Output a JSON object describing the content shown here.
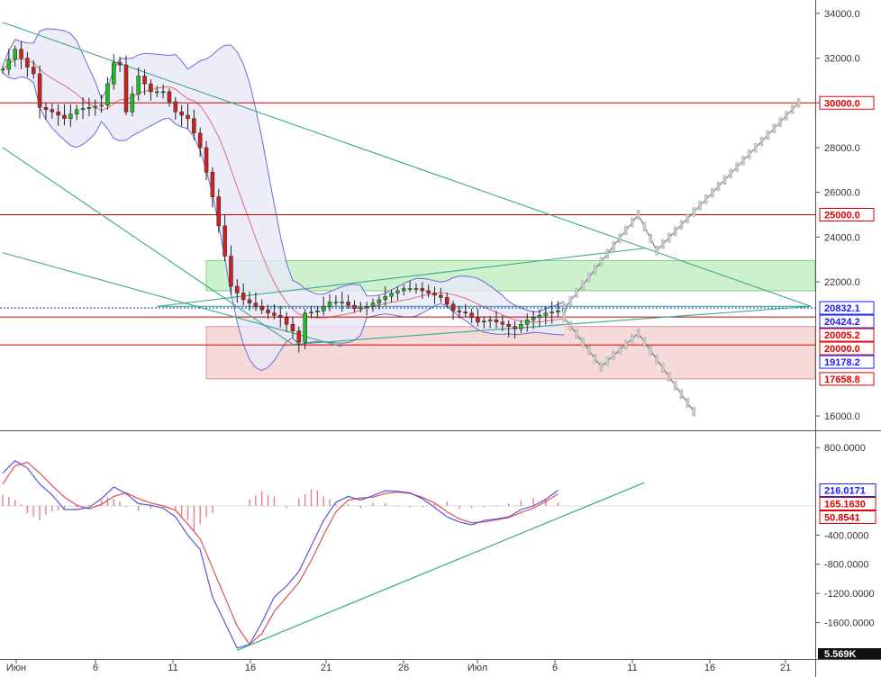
{
  "chart_data": [
    {
      "type": "candlestick",
      "ylim": [
        15400,
        34600
      ],
      "x_axis_labels": [
        "Июн",
        "6",
        "11",
        "16",
        "21",
        "26",
        "Июл",
        "6",
        "11",
        "16",
        "21"
      ],
      "y_tick_labels": [
        "34000.0",
        "32000.0",
        "30000.0",
        "28000.0",
        "26000.0",
        "24000.0",
        "22000.0",
        "16000.0"
      ],
      "price_tags": [
        {
          "label": "30000.0",
          "value": 30000,
          "color": "#e00000"
        },
        {
          "label": "25000.0",
          "value": 25000,
          "color": "#e00000"
        },
        {
          "label": "20832.1",
          "value": 20832.1,
          "color": "#1a1aff"
        },
        {
          "label": "20424.2",
          "value": 20424.2,
          "color": "#1a1aff"
        },
        {
          "label": "20005.2",
          "value": 20005.2,
          "color": "#e00000"
        },
        {
          "label": "20000.0",
          "value": 20000,
          "color": "#e00000"
        },
        {
          "label": "19178.2",
          "value": 19178.2,
          "color": "#1a1aff"
        },
        {
          "label": "17658.8",
          "value": 17658.8,
          "color": "#e00000"
        }
      ],
      "horizontal_levels": [
        30000,
        25000,
        20424.2,
        19178.2
      ],
      "current_price_level": 20832.1,
      "zones": [
        {
          "from": 21600,
          "to": 22950,
          "color": "#c8f0c8"
        },
        {
          "from": 17658.8,
          "to": 20000,
          "color": "#f6d6d6"
        }
      ],
      "colors": {
        "up": "#22bb22",
        "down": "#cc2222",
        "bands": "#6a6ad8",
        "bands_fill": "#e8e8f8",
        "ma": "#e07070",
        "trendlines": "#3aa88a",
        "levels": "#cc0000",
        "projection": "#888888"
      },
      "price_path": [
        [
          0,
          31500
        ],
        [
          2,
          32400
        ],
        [
          4,
          31600
        ],
        [
          5,
          31300
        ],
        [
          6,
          29800
        ],
        [
          8,
          29600
        ],
        [
          10,
          29300
        ],
        [
          12,
          29700
        ],
        [
          14,
          29800
        ],
        [
          16,
          29900
        ],
        [
          18,
          31800
        ],
        [
          19,
          31700
        ],
        [
          20,
          29600
        ],
        [
          22,
          31200
        ],
        [
          24,
          30500
        ],
        [
          26,
          30500
        ],
        [
          28,
          29600
        ],
        [
          30,
          29300
        ],
        [
          32,
          28000
        ],
        [
          34,
          25800
        ],
        [
          35,
          24500
        ],
        [
          37,
          21800
        ],
        [
          39,
          21200
        ],
        [
          41,
          20900
        ],
        [
          43,
          20600
        ],
        [
          45,
          20400
        ],
        [
          47,
          19800
        ],
        [
          48,
          19300
        ],
        [
          49,
          20600
        ],
        [
          51,
          20700
        ],
        [
          53,
          21100
        ],
        [
          55,
          21100
        ],
        [
          57,
          20800
        ],
        [
          59,
          20900
        ],
        [
          61,
          21200
        ],
        [
          63,
          21500
        ],
        [
          65,
          21700
        ],
        [
          67,
          21700
        ],
        [
          69,
          21500
        ],
        [
          71,
          21300
        ],
        [
          73,
          20700
        ],
        [
          75,
          20600
        ],
        [
          77,
          20200
        ],
        [
          79,
          20300
        ],
        [
          81,
          20100
        ],
        [
          83,
          19900
        ],
        [
          85,
          20300
        ],
        [
          86,
          20400
        ],
        [
          88,
          20600
        ],
        [
          90,
          20700
        ],
        [
          91,
          20832
        ]
      ],
      "projection_up": [
        [
          91,
          20800
        ],
        [
          103,
          25000
        ],
        [
          106,
          23400
        ],
        [
          129,
          30000
        ]
      ],
      "projection_down": [
        [
          91,
          20400
        ],
        [
          97,
          18200
        ],
        [
          103,
          19700
        ],
        [
          112,
          16200
        ]
      ]
    },
    {
      "type": "macd",
      "ylim": [
        -2100,
        1000
      ],
      "y_tick_labels": [
        "800.0000",
        "-400.0000",
        "-800.0000",
        "-1200.0000",
        "-1600.0000"
      ],
      "value_tags": [
        {
          "label": "216.0171",
          "value": 216.0171,
          "color": "#1a1aff"
        },
        {
          "label": "165.1630",
          "value": 165.163,
          "color": "#e00000"
        },
        {
          "label": "50.8541",
          "value": 50.8541,
          "color": "#e00000"
        }
      ],
      "bottom_tag": "5.569K",
      "macd": [
        [
          0,
          450
        ],
        [
          2,
          620
        ],
        [
          4,
          520
        ],
        [
          6,
          300
        ],
        [
          8,
          150
        ],
        [
          10,
          -50
        ],
        [
          12,
          -50
        ],
        [
          14,
          -20
        ],
        [
          16,
          100
        ],
        [
          18,
          260
        ],
        [
          20,
          170
        ],
        [
          22,
          30
        ],
        [
          24,
          10
        ],
        [
          26,
          -30
        ],
        [
          28,
          -150
        ],
        [
          30,
          -400
        ],
        [
          32,
          -600
        ],
        [
          34,
          -1250
        ],
        [
          36,
          -1600
        ],
        [
          38,
          -1950
        ],
        [
          40,
          -1900
        ],
        [
          42,
          -1600
        ],
        [
          44,
          -1250
        ],
        [
          46,
          -1100
        ],
        [
          48,
          -900
        ],
        [
          50,
          -550
        ],
        [
          52,
          -200
        ],
        [
          54,
          50
        ],
        [
          56,
          130
        ],
        [
          58,
          80
        ],
        [
          60,
          140
        ],
        [
          62,
          210
        ],
        [
          64,
          200
        ],
        [
          66,
          180
        ],
        [
          68,
          100
        ],
        [
          70,
          -20
        ],
        [
          72,
          -150
        ],
        [
          74,
          -220
        ],
        [
          76,
          -260
        ],
        [
          78,
          -200
        ],
        [
          80,
          -180
        ],
        [
          82,
          -150
        ],
        [
          84,
          -50
        ],
        [
          86,
          0
        ],
        [
          88,
          90
        ],
        [
          90,
          216
        ]
      ],
      "signal": [
        [
          0,
          300
        ],
        [
          2,
          550
        ],
        [
          4,
          600
        ],
        [
          6,
          450
        ],
        [
          8,
          280
        ],
        [
          10,
          120
        ],
        [
          12,
          10
        ],
        [
          14,
          -40
        ],
        [
          16,
          20
        ],
        [
          18,
          130
        ],
        [
          20,
          180
        ],
        [
          22,
          100
        ],
        [
          24,
          40
        ],
        [
          26,
          0
        ],
        [
          28,
          -60
        ],
        [
          30,
          -250
        ],
        [
          32,
          -450
        ],
        [
          34,
          -850
        ],
        [
          36,
          -1250
        ],
        [
          38,
          -1650
        ],
        [
          40,
          -1900
        ],
        [
          42,
          -1750
        ],
        [
          44,
          -1450
        ],
        [
          46,
          -1250
        ],
        [
          48,
          -1050
        ],
        [
          50,
          -750
        ],
        [
          52,
          -400
        ],
        [
          54,
          -80
        ],
        [
          56,
          80
        ],
        [
          58,
          110
        ],
        [
          60,
          120
        ],
        [
          62,
          170
        ],
        [
          64,
          190
        ],
        [
          66,
          170
        ],
        [
          68,
          120
        ],
        [
          70,
          40
        ],
        [
          72,
          -80
        ],
        [
          74,
          -180
        ],
        [
          76,
          -230
        ],
        [
          78,
          -220
        ],
        [
          80,
          -190
        ],
        [
          82,
          -160
        ],
        [
          84,
          -90
        ],
        [
          86,
          -30
        ],
        [
          88,
          60
        ],
        [
          90,
          165
        ]
      ],
      "histogram": [
        [
          0,
          150
        ],
        [
          1,
          120
        ],
        [
          2,
          80
        ],
        [
          3,
          20
        ],
        [
          4,
          -100
        ],
        [
          5,
          -150
        ],
        [
          6,
          -200
        ],
        [
          7,
          -120
        ],
        [
          8,
          -80
        ],
        [
          9,
          -60
        ],
        [
          10,
          -40
        ],
        [
          12,
          -20
        ],
        [
          14,
          10
        ],
        [
          16,
          80
        ],
        [
          17,
          120
        ],
        [
          18,
          100
        ],
        [
          19,
          60
        ],
        [
          20,
          -20
        ],
        [
          22,
          -70
        ],
        [
          24,
          -40
        ],
        [
          26,
          -30
        ],
        [
          28,
          -60
        ],
        [
          29,
          -150
        ],
        [
          30,
          -200
        ],
        [
          31,
          -350
        ],
        [
          32,
          -250
        ],
        [
          33,
          -150
        ],
        [
          34,
          -100
        ],
        [
          38,
          0
        ],
        [
          40,
          90
        ],
        [
          41,
          150
        ],
        [
          42,
          200
        ],
        [
          43,
          150
        ],
        [
          44,
          130
        ],
        [
          46,
          -30
        ],
        [
          48,
          100
        ],
        [
          49,
          160
        ],
        [
          50,
          230
        ],
        [
          51,
          210
        ],
        [
          52,
          130
        ],
        [
          53,
          90
        ],
        [
          54,
          30
        ],
        [
          56,
          20
        ],
        [
          58,
          -30
        ],
        [
          60,
          40
        ],
        [
          62,
          40
        ],
        [
          64,
          10
        ],
        [
          66,
          -20
        ],
        [
          68,
          -20
        ],
        [
          70,
          30
        ],
        [
          72,
          60
        ],
        [
          74,
          -40
        ],
        [
          76,
          -30
        ],
        [
          78,
          -20
        ],
        [
          80,
          -10
        ],
        [
          82,
          30
        ],
        [
          84,
          80
        ],
        [
          86,
          110
        ],
        [
          88,
          80
        ],
        [
          90,
          50
        ]
      ]
    }
  ]
}
